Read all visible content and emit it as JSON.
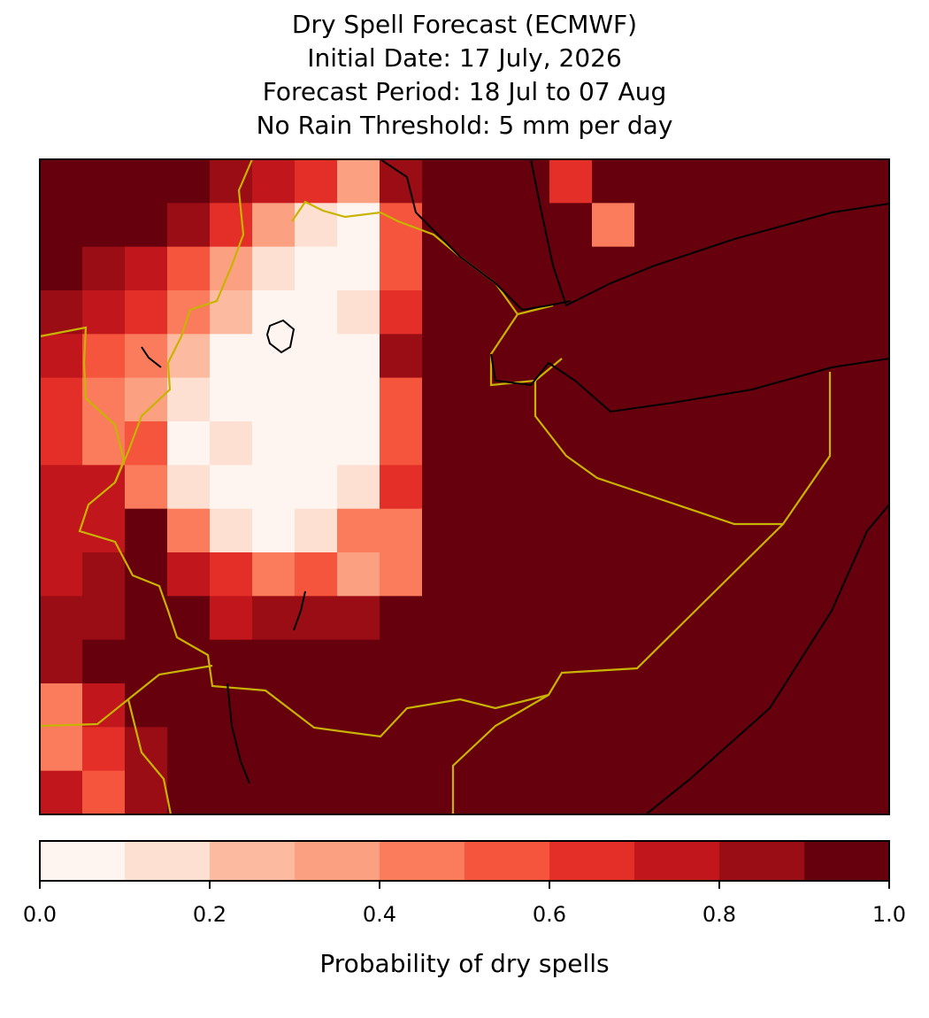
{
  "chart_data": {
    "type": "heatmap",
    "title": [
      "Dry Spell Forecast (ECMWF)",
      "Initial Date: 17 July, 2026",
      "Forecast Period: 18 Jul to 07 Aug",
      "No Rain Threshold: 5 mm per day"
    ],
    "grid": [
      [
        0.95,
        0.95,
        0.95,
        0.9,
        0.85,
        0.7,
        0.65,
        0.3,
        0.8,
        0.95,
        0.95,
        0.95,
        0.6,
        0.95,
        0.95,
        0.95,
        0.95,
        0.95,
        0.95,
        0.95
      ],
      [
        0.95,
        0.95,
        0.9,
        0.8,
        0.6,
        0.35,
        0.1,
        0.05,
        0.5,
        0.95,
        0.95,
        0.95,
        0.95,
        0.4,
        0.95,
        0.95,
        0.95,
        0.95,
        0.95,
        0.95
      ],
      [
        0.95,
        0.85,
        0.75,
        0.5,
        0.3,
        0.1,
        0.05,
        0.05,
        0.5,
        0.95,
        0.95,
        0.95,
        0.95,
        0.95,
        0.95,
        0.95,
        0.95,
        0.95,
        0.95,
        0.95
      ],
      [
        0.8,
        0.75,
        0.6,
        0.4,
        0.2,
        0.05,
        0.05,
        0.1,
        0.6,
        0.95,
        0.95,
        0.95,
        0.95,
        0.95,
        0.95,
        0.95,
        0.95,
        0.95,
        0.95,
        0.95
      ],
      [
        0.7,
        0.5,
        0.4,
        0.2,
        0.05,
        0.05,
        0.05,
        0.05,
        0.8,
        0.95,
        0.95,
        0.95,
        0.95,
        0.95,
        0.95,
        0.95,
        0.95,
        0.95,
        0.95,
        0.95
      ],
      [
        0.65,
        0.45,
        0.35,
        0.1,
        0.05,
        0.05,
        0.05,
        0.05,
        0.5,
        0.95,
        0.95,
        0.95,
        0.95,
        0.95,
        0.95,
        0.95,
        0.95,
        0.95,
        0.95,
        0.95
      ],
      [
        0.65,
        0.45,
        0.5,
        0.05,
        0.1,
        0.05,
        0.05,
        0.05,
        0.5,
        0.95,
        0.95,
        0.95,
        0.95,
        0.95,
        0.95,
        0.95,
        0.95,
        0.95,
        0.95,
        0.95
      ],
      [
        0.7,
        0.7,
        0.4,
        0.1,
        0.05,
        0.05,
        0.05,
        0.1,
        0.65,
        0.9,
        0.95,
        0.95,
        0.95,
        0.95,
        0.95,
        0.95,
        0.95,
        0.95,
        0.95,
        0.95
      ],
      [
        0.7,
        0.75,
        0.9,
        0.4,
        0.1,
        0.05,
        0.15,
        0.4,
        0.4,
        0.95,
        0.95,
        0.95,
        0.95,
        0.95,
        0.95,
        0.95,
        0.95,
        0.95,
        0.95,
        0.95
      ],
      [
        0.75,
        0.8,
        0.9,
        0.75,
        0.6,
        0.4,
        0.5,
        0.35,
        0.45,
        0.95,
        0.95,
        0.95,
        0.95,
        0.95,
        0.95,
        0.95,
        0.95,
        0.95,
        0.95,
        0.95
      ],
      [
        0.8,
        0.85,
        0.95,
        0.95,
        0.75,
        0.8,
        0.8,
        0.8,
        0.9,
        0.95,
        0.95,
        0.95,
        0.95,
        0.95,
        0.95,
        0.95,
        0.95,
        0.95,
        0.95,
        0.95
      ],
      [
        0.85,
        0.95,
        0.95,
        0.95,
        0.95,
        0.95,
        0.95,
        0.95,
        0.95,
        0.95,
        0.95,
        0.95,
        0.95,
        0.95,
        0.95,
        0.95,
        0.95,
        0.95,
        0.95,
        0.95
      ],
      [
        0.45,
        0.75,
        0.95,
        0.95,
        0.95,
        0.95,
        0.95,
        0.95,
        0.95,
        0.95,
        0.95,
        0.95,
        0.95,
        0.95,
        0.95,
        0.95,
        0.95,
        0.95,
        0.95,
        0.95
      ],
      [
        0.4,
        0.65,
        0.85,
        0.95,
        0.95,
        0.95,
        0.95,
        0.95,
        0.95,
        0.95,
        0.95,
        0.95,
        0.95,
        0.95,
        0.95,
        0.95,
        0.95,
        0.95,
        0.95,
        0.95
      ],
      [
        0.7,
        0.55,
        0.85,
        0.95,
        0.95,
        0.95,
        0.95,
        0.95,
        0.95,
        0.95,
        0.95,
        0.95,
        0.95,
        0.95,
        0.95,
        0.95,
        0.95,
        0.95,
        0.95,
        0.95
      ]
    ],
    "levels": [
      0,
      0.1,
      0.2,
      0.3,
      0.4,
      0.5,
      0.6,
      0.7,
      0.8,
      0.9,
      1.0
    ],
    "colors": [
      "#fff5f0",
      "#fee0d2",
      "#fcbba1",
      "#fca082",
      "#fb7c5c",
      "#f5553c",
      "#e32f27",
      "#c1161b",
      "#9b0d14",
      "#67000d"
    ],
    "colorbar_ticks": [
      {
        "value": 0,
        "label": "0.0"
      },
      0.2,
      0.4,
      0.6,
      0.8,
      {
        "value": 1,
        "label": "1.0"
      }
    ],
    "colorbar_label": "Probability of dry spells"
  }
}
